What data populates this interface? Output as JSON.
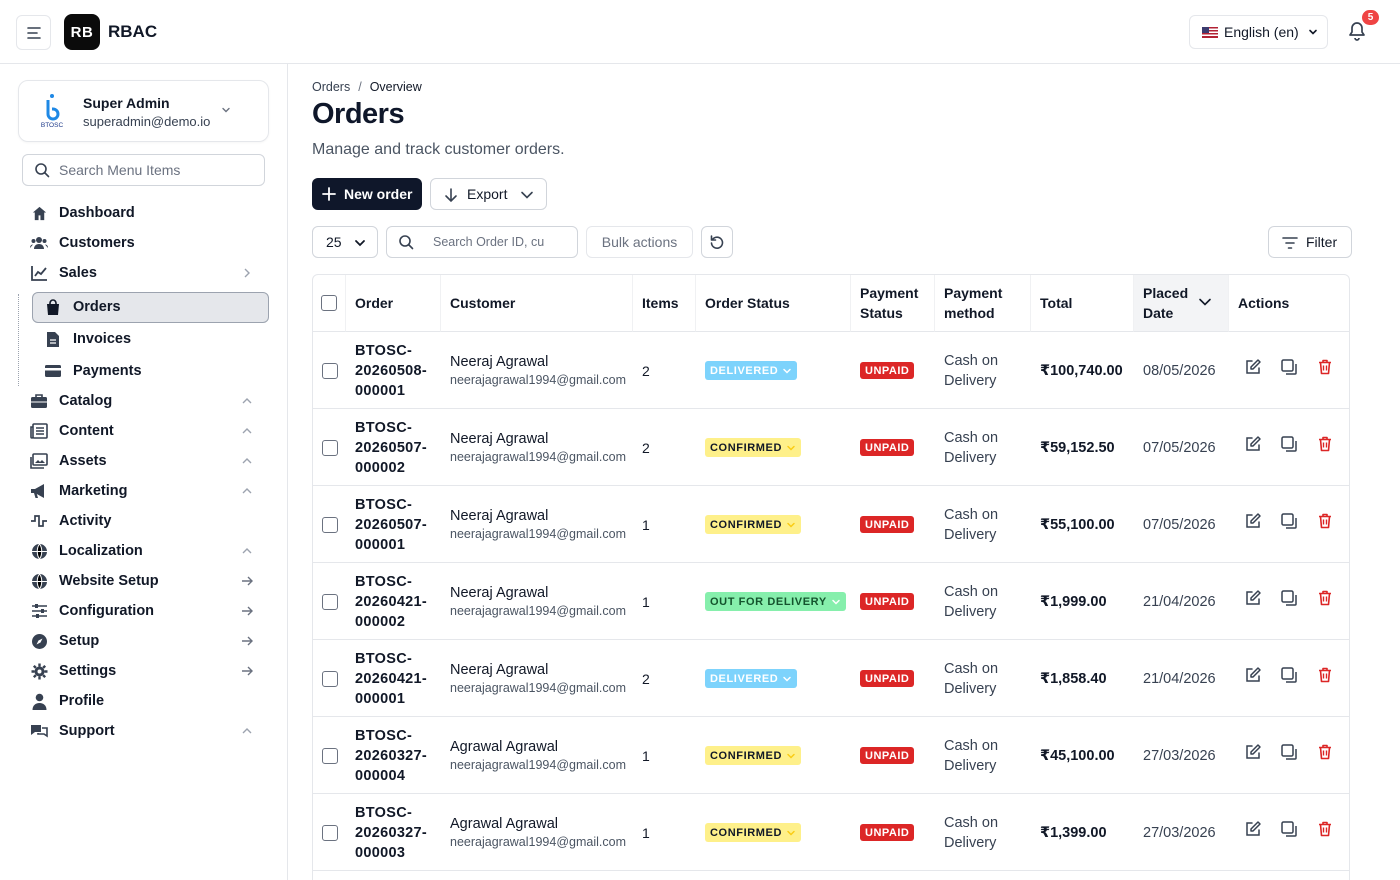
{
  "header": {
    "logo_text": "RB",
    "app_name": "RBAC",
    "language": "English (en)",
    "notifications_count": "5"
  },
  "user": {
    "name": "Super Admin",
    "email": "superadmin@demo.io",
    "logo_caption": "BTOSC"
  },
  "sidebar": {
    "search_placeholder": "Search Menu Items",
    "items": [
      {
        "label": "Dashboard",
        "icon": "home-icon"
      },
      {
        "label": "Customers",
        "icon": "users-icon"
      },
      {
        "label": "Sales",
        "icon": "chart-line-icon",
        "trail": "chevron-right-icon"
      },
      {
        "label": "Catalog",
        "icon": "briefcase-icon",
        "trail": "chevron-up-icon"
      },
      {
        "label": "Content",
        "icon": "newspaper-icon",
        "trail": "chevron-up-icon"
      },
      {
        "label": "Assets",
        "icon": "images-icon",
        "trail": "chevron-up-icon"
      },
      {
        "label": "Marketing",
        "icon": "megaphone-icon",
        "trail": "chevron-up-icon"
      },
      {
        "label": "Activity",
        "icon": "activity-icon"
      },
      {
        "label": "Localization",
        "icon": "globe-icon",
        "trail": "chevron-up-icon"
      },
      {
        "label": "Website Setup",
        "icon": "globe-icon",
        "trail": "arrow-right-icon"
      },
      {
        "label": "Configuration",
        "icon": "sliders-icon",
        "trail": "arrow-right-icon"
      },
      {
        "label": "Setup",
        "icon": "compass-icon",
        "trail": "arrow-right-icon"
      },
      {
        "label": "Settings",
        "icon": "gear-icon",
        "trail": "arrow-right-icon"
      },
      {
        "label": "Profile",
        "icon": "user-icon"
      },
      {
        "label": "Support",
        "icon": "chat-icon",
        "trail": "chevron-up-icon"
      }
    ],
    "sales_sub": [
      {
        "label": "Orders",
        "icon": "bag-icon",
        "active": true
      },
      {
        "label": "Invoices",
        "icon": "file-icon"
      },
      {
        "label": "Payments",
        "icon": "card-icon"
      }
    ]
  },
  "page": {
    "breadcrumb_parent": "Orders",
    "breadcrumb_sep": "/",
    "breadcrumb_current": "Overview",
    "title": "Orders",
    "subtitle": "Manage and track customer orders.",
    "new_order_label": "New order",
    "export_label": "Export"
  },
  "toolbar": {
    "per_page": "25",
    "search_placeholder": "Search Order ID, cu",
    "bulk_label": "Bulk actions",
    "filter_label": "Filter"
  },
  "table": {
    "headers": {
      "order": "Order",
      "customer": "Customer",
      "items": "Items",
      "order_status": "Order Status",
      "payment_status_1": "Payment",
      "payment_status_2": "Status",
      "payment_method_1": "Payment",
      "payment_method_2": "method",
      "total": "Total",
      "placed_date_1": "Placed",
      "placed_date_2": "Date",
      "actions": "Actions"
    },
    "rows": [
      {
        "order_1": "BTOSC-",
        "order_2": "20260508-",
        "order_3": "000001",
        "customer": "Neeraj Agrawal",
        "email": "neerajagrawal1994@gmail.com",
        "items": "2",
        "status": "DELIVERED",
        "status_kind": "delivered",
        "payment": "UNPAID",
        "method_1": "Cash on",
        "method_2": "Delivery",
        "total": "₹100,740.00",
        "date": "08/05/2026"
      },
      {
        "order_1": "BTOSC-",
        "order_2": "20260507-",
        "order_3": "000002",
        "customer": "Neeraj Agrawal",
        "email": "neerajagrawal1994@gmail.com",
        "items": "2",
        "status": "CONFIRMED",
        "status_kind": "confirmed",
        "payment": "UNPAID",
        "method_1": "Cash on",
        "method_2": "Delivery",
        "total": "₹59,152.50",
        "date": "07/05/2026"
      },
      {
        "order_1": "BTOSC-",
        "order_2": "20260507-",
        "order_3": "000001",
        "customer": "Neeraj Agrawal",
        "email": "neerajagrawal1994@gmail.com",
        "items": "1",
        "status": "CONFIRMED",
        "status_kind": "confirmed",
        "payment": "UNPAID",
        "method_1": "Cash on",
        "method_2": "Delivery",
        "total": "₹55,100.00",
        "date": "07/05/2026"
      },
      {
        "order_1": "BTOSC-",
        "order_2": "20260421-",
        "order_3": "000002",
        "customer": "Neeraj Agrawal",
        "email": "neerajagrawal1994@gmail.com",
        "items": "1",
        "status": "OUT FOR DELIVERY",
        "status_kind": "out",
        "payment": "UNPAID",
        "method_1": "Cash on",
        "method_2": "Delivery",
        "total": "₹1,999.00",
        "date": "21/04/2026"
      },
      {
        "order_1": "BTOSC-",
        "order_2": "20260421-",
        "order_3": "000001",
        "customer": "Neeraj Agrawal",
        "email": "neerajagrawal1994@gmail.com",
        "items": "2",
        "status": "DELIVERED",
        "status_kind": "delivered",
        "payment": "UNPAID",
        "method_1": "Cash on",
        "method_2": "Delivery",
        "total": "₹1,858.40",
        "date": "21/04/2026"
      },
      {
        "order_1": "BTOSC-",
        "order_2": "20260327-",
        "order_3": "000004",
        "customer": "Agrawal Agrawal",
        "email": "neerajagrawal1994@gmail.com",
        "items": "1",
        "status": "CONFIRMED",
        "status_kind": "confirmed",
        "payment": "UNPAID",
        "method_1": "Cash on",
        "method_2": "Delivery",
        "total": "₹45,100.00",
        "date": "27/03/2026"
      },
      {
        "order_1": "BTOSC-",
        "order_2": "20260327-",
        "order_3": "000003",
        "customer": "Agrawal Agrawal",
        "email": "neerajagrawal1994@gmail.com",
        "items": "1",
        "status": "CONFIRMED",
        "status_kind": "confirmed",
        "payment": "UNPAID",
        "method_1": "Cash on",
        "method_2": "Delivery",
        "total": "₹1,399.00",
        "date": "27/03/2026"
      }
    ]
  },
  "colors": {
    "primary": "#0f172a",
    "delivered_bg": "#7dd3fc",
    "confirmed_bg": "#fef08a",
    "out_bg": "#86efac",
    "unpaid_bg": "#dc2626",
    "delete": "#dc2626"
  }
}
